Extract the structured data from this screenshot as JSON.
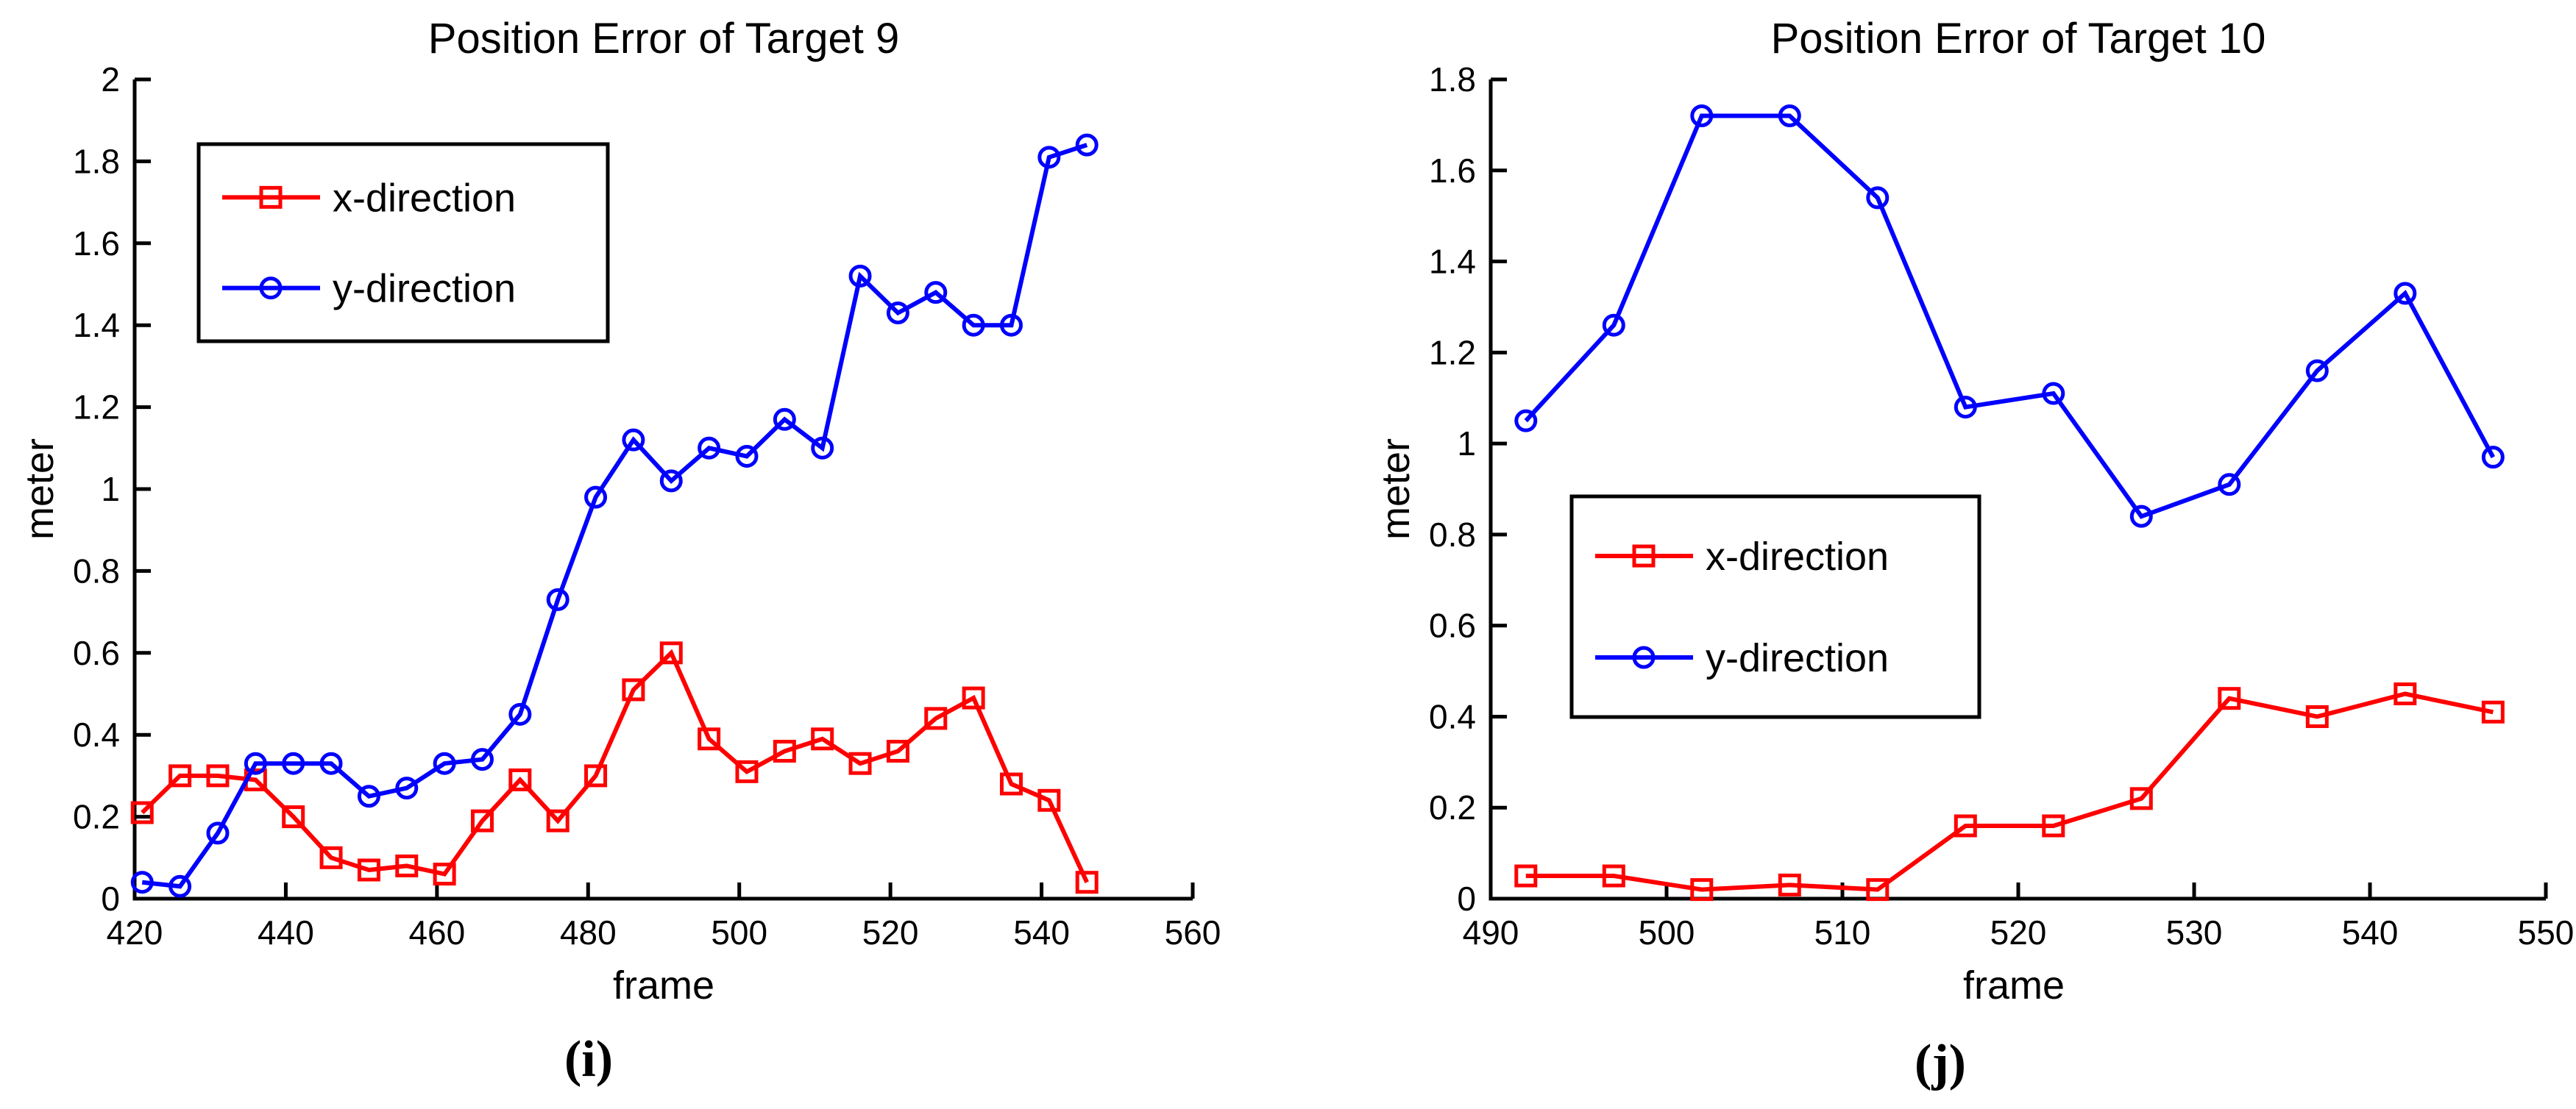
{
  "figure": {
    "background": "#ffffff",
    "axis_color": "#000000",
    "text_color": "#000000"
  },
  "chart_data": [
    {
      "type": "line",
      "title": "Position Error of Target 9",
      "xlabel": "frame",
      "ylabel": "meter",
      "caption": "(i)",
      "xlim": [
        420,
        560
      ],
      "ylim": [
        0,
        2
      ],
      "xticks": [
        420,
        440,
        460,
        480,
        500,
        520,
        540,
        560
      ],
      "yticks": [
        0,
        0.2,
        0.4,
        0.6,
        0.8,
        1,
        1.2,
        1.4,
        1.6,
        1.8,
        2
      ],
      "grid": false,
      "legend_position": "upper-left",
      "x": [
        421,
        426,
        431,
        436,
        441,
        446,
        451,
        456,
        461,
        466,
        471,
        476,
        481,
        486,
        491,
        496,
        501,
        506,
        511,
        516,
        521,
        526,
        531,
        536,
        541,
        546
      ],
      "series": [
        {
          "name": "x-direction",
          "color": "#ff0000",
          "marker": "square",
          "values": [
            0.21,
            0.3,
            0.3,
            0.29,
            0.2,
            0.1,
            0.07,
            0.08,
            0.06,
            0.19,
            0.29,
            0.19,
            0.3,
            0.51,
            0.6,
            0.39,
            0.31,
            0.36,
            0.39,
            0.33,
            0.36,
            0.44,
            0.49,
            0.28,
            0.24,
            0.04
          ]
        },
        {
          "name": "y-direction",
          "color": "#0000ff",
          "marker": "circle",
          "values": [
            0.04,
            0.03,
            0.16,
            0.33,
            0.33,
            0.33,
            0.25,
            0.27,
            0.33,
            0.34,
            0.45,
            0.73,
            0.98,
            1.12,
            1.02,
            1.1,
            1.08,
            1.17,
            1.1,
            1.52,
            1.43,
            1.48,
            1.4,
            1.4,
            1.81,
            1.84
          ]
        }
      ]
    },
    {
      "type": "line",
      "title": "Position Error of Target 10",
      "xlabel": "frame",
      "ylabel": "meter",
      "caption": "(j)",
      "xlim": [
        490,
        550
      ],
      "ylim": [
        0,
        1.8
      ],
      "xticks": [
        490,
        500,
        510,
        520,
        530,
        540,
        550
      ],
      "yticks": [
        0,
        0.2,
        0.4,
        0.6,
        0.8,
        1,
        1.2,
        1.4,
        1.6,
        1.8
      ],
      "grid": false,
      "legend_position": "middle-left",
      "x": [
        492,
        497,
        502,
        507,
        512,
        517,
        522,
        527,
        532,
        537,
        542,
        547
      ],
      "series": [
        {
          "name": "x-direction",
          "color": "#ff0000",
          "marker": "square",
          "values": [
            0.05,
            0.05,
            0.02,
            0.03,
            0.02,
            0.16,
            0.16,
            0.22,
            0.44,
            0.4,
            0.45,
            0.41
          ]
        },
        {
          "name": "y-direction",
          "color": "#0000ff",
          "marker": "circle",
          "values": [
            1.05,
            1.26,
            1.72,
            1.72,
            1.54,
            1.08,
            1.11,
            0.84,
            0.91,
            1.16,
            1.33,
            0.97
          ]
        }
      ]
    }
  ]
}
